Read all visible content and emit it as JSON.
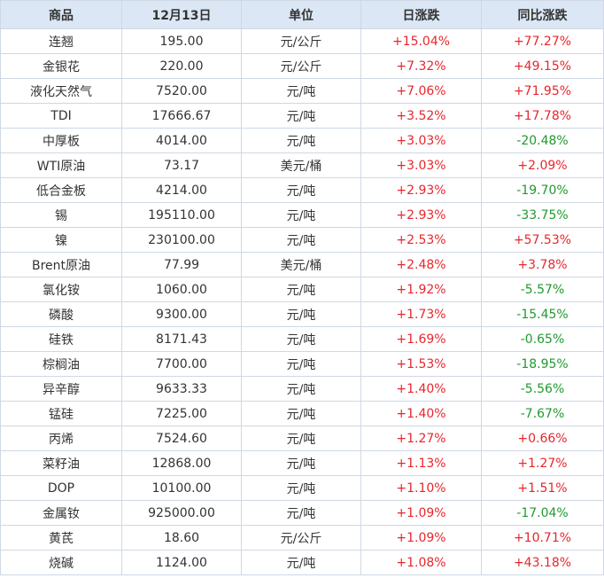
{
  "table": {
    "headers": [
      "商品",
      "12月13日",
      "单位",
      "日涨跌",
      "同比涨跌"
    ],
    "colors": {
      "up": "#e8262c",
      "down": "#1f9a2f",
      "header_bg": "#dbe7f4"
    },
    "rows": [
      [
        "连翘",
        "195.00",
        "元/公斤",
        "+15.04%",
        "+77.27%"
      ],
      [
        "金银花",
        "220.00",
        "元/公斤",
        "+7.32%",
        "+49.15%"
      ],
      [
        "液化天然气",
        "7520.00",
        "元/吨",
        "+7.06%",
        "+71.95%"
      ],
      [
        "TDI",
        "17666.67",
        "元/吨",
        "+3.52%",
        "+17.78%"
      ],
      [
        "中厚板",
        "4014.00",
        "元/吨",
        "+3.03%",
        "-20.48%"
      ],
      [
        "WTI原油",
        "73.17",
        "美元/桶",
        "+3.03%",
        "+2.09%"
      ],
      [
        "低合金板",
        "4214.00",
        "元/吨",
        "+2.93%",
        "-19.70%"
      ],
      [
        "锡",
        "195110.00",
        "元/吨",
        "+2.93%",
        "-33.75%"
      ],
      [
        "镍",
        "230100.00",
        "元/吨",
        "+2.53%",
        "+57.53%"
      ],
      [
        "Brent原油",
        "77.99",
        "美元/桶",
        "+2.48%",
        "+3.78%"
      ],
      [
        "氯化铵",
        "1060.00",
        "元/吨",
        "+1.92%",
        "-5.57%"
      ],
      [
        "磷酸",
        "9300.00",
        "元/吨",
        "+1.73%",
        "-15.45%"
      ],
      [
        "硅铁",
        "8171.43",
        "元/吨",
        "+1.69%",
        "-0.65%"
      ],
      [
        "棕榈油",
        "7700.00",
        "元/吨",
        "+1.53%",
        "-18.95%"
      ],
      [
        "异辛醇",
        "9633.33",
        "元/吨",
        "+1.40%",
        "-5.56%"
      ],
      [
        "锰硅",
        "7225.00",
        "元/吨",
        "+1.40%",
        "-7.67%"
      ],
      [
        "丙烯",
        "7524.60",
        "元/吨",
        "+1.27%",
        "+0.66%"
      ],
      [
        "菜籽油",
        "12868.00",
        "元/吨",
        "+1.13%",
        "+1.27%"
      ],
      [
        "DOP",
        "10100.00",
        "元/吨",
        "+1.10%",
        "+1.51%"
      ],
      [
        "金属钕",
        "925000.00",
        "元/吨",
        "+1.09%",
        "-17.04%"
      ],
      [
        "黄芪",
        "18.60",
        "元/公斤",
        "+1.09%",
        "+10.71%"
      ],
      [
        "烧碱",
        "1124.00",
        "元/吨",
        "+1.08%",
        "+43.18%"
      ]
    ]
  }
}
